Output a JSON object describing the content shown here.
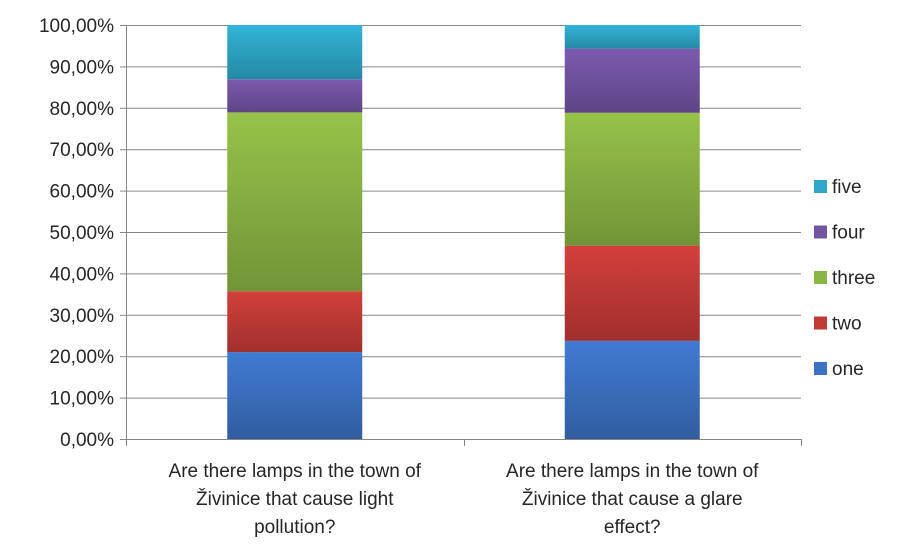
{
  "chart_data": {
    "type": "bar",
    "stacked": true,
    "categories": [
      [
        "Are there lamps in the town of",
        "Živinice that cause light",
        "pollution?"
      ],
      [
        "Are there lamps in the town of",
        "Živinice that cause a glare",
        "effect?"
      ]
    ],
    "series": [
      {
        "name": "one",
        "color": "#3c72c3",
        "values": [
          21.0,
          23.7
        ]
      },
      {
        "name": "two",
        "color": "#c33b37",
        "values": [
          14.7,
          23.0
        ]
      },
      {
        "name": "three",
        "color": "#8bb544",
        "values": [
          43.2,
          32.1
        ]
      },
      {
        "name": "four",
        "color": "#7254a2",
        "values": [
          8.0,
          15.5
        ]
      },
      {
        "name": "five",
        "color": "#2ea7c8",
        "values": [
          13.1,
          5.7
        ]
      }
    ],
    "ylim": [
      0,
      100
    ],
    "yticks": [
      "0,00%",
      "10,00%",
      "20,00%",
      "30,00%",
      "40,00%",
      "50,00%",
      "60,00%",
      "70,00%",
      "80,00%",
      "90,00%",
      "100,00%"
    ],
    "grid": true,
    "legend_position": "right",
    "legend_order": [
      "five",
      "four",
      "three",
      "two",
      "one"
    ]
  }
}
